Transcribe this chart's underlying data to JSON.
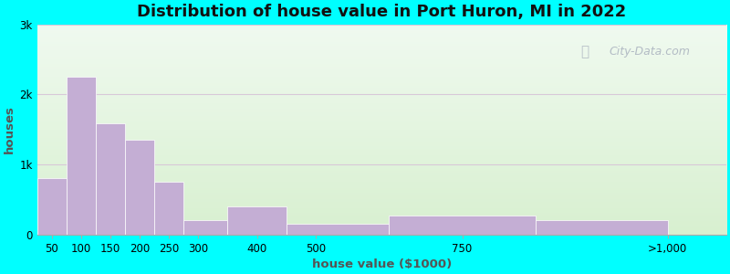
{
  "title": "Distribution of house value in Port Huron, MI in 2022",
  "xlabel": "house value ($1000)",
  "ylabel": "houses",
  "bar_labels": [
    "50",
    "100",
    "150",
    "200",
    "250",
    "300",
    "400",
    "500",
    "750",
    ">1,000"
  ],
  "bar_values": [
    800,
    2250,
    1580,
    1350,
    750,
    200,
    400,
    150,
    270,
    210
  ],
  "bar_color": "#c4aed4",
  "background_color": "#00ffff",
  "plot_bg": "#e8f5e0",
  "ylim": [
    0,
    3000
  ],
  "yticks": [
    0,
    1000,
    2000,
    3000
  ],
  "ytick_labels": [
    "0",
    "1k",
    "2k",
    "3k"
  ],
  "title_fontsize": 13,
  "axis_fontsize": 8.5,
  "watermark": "City-Data.com",
  "grid_color": "#d8c8d8",
  "bar_left_edges": [
    25,
    75,
    125,
    175,
    225,
    275,
    350,
    450,
    625,
    875
  ],
  "bar_widths": [
    50,
    50,
    50,
    50,
    50,
    75,
    100,
    175,
    250,
    225
  ],
  "xtick_positions": [
    50,
    100,
    150,
    200,
    250,
    300,
    400,
    500,
    750,
    1100
  ],
  "xlim": [
    25,
    1200
  ]
}
